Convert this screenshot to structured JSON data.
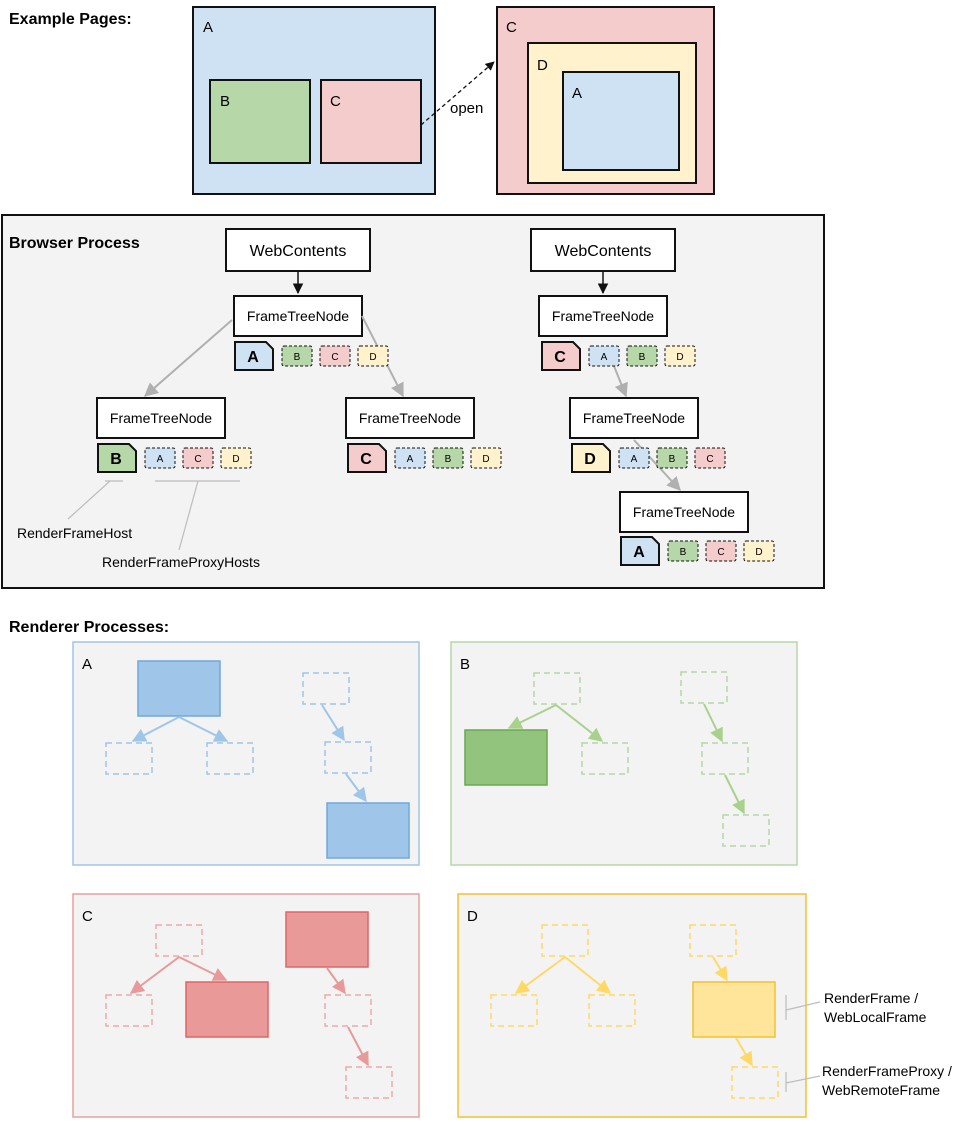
{
  "colors": {
    "blue": "#cfe2f3",
    "green": "#b6d7a8",
    "red": "#f4cccc",
    "yellow": "#fff2cc",
    "panel": "#f3f3f3",
    "blue_strong": "#9fc5e8",
    "green_strong": "#93c47d",
    "red_strong": "#ea9999",
    "yellow_strong": "#ffe599",
    "blue_line": "#9fc5e8",
    "green_line": "#a9d18e",
    "red_line": "#e06666",
    "yellow_line": "#f1c232"
  },
  "example_pages": {
    "heading": "Example Pages:",
    "page1": {
      "outer": "A",
      "child_b": "B",
      "child_c": "C"
    },
    "open_label": "open",
    "page2": {
      "outer": "C",
      "middle": "D",
      "inner": "A"
    }
  },
  "browser_process": {
    "heading": "Browser Process",
    "tree1": {
      "web_contents": "WebContents",
      "root": {
        "label": "FrameTreeNode",
        "host": "A",
        "proxies": [
          "B",
          "C",
          "D"
        ]
      },
      "left": {
        "label": "FrameTreeNode",
        "host": "B",
        "proxies": [
          "A",
          "C",
          "D"
        ]
      },
      "right": {
        "label": "FrameTreeNode",
        "host": "C",
        "proxies": [
          "A",
          "B",
          "D"
        ]
      }
    },
    "tree2": {
      "web_contents": "WebContents",
      "root": {
        "label": "FrameTreeNode",
        "host": "C",
        "proxies": [
          "A",
          "B",
          "D"
        ]
      },
      "mid": {
        "label": "FrameTreeNode",
        "host": "D",
        "proxies": [
          "A",
          "B",
          "C"
        ]
      },
      "leaf": {
        "label": "FrameTreeNode",
        "host": "A",
        "proxies": [
          "B",
          "C",
          "D"
        ]
      }
    },
    "callouts": {
      "render_frame_host": "RenderFrameHost",
      "render_frame_proxy_hosts": "RenderFrameProxyHosts"
    }
  },
  "renderer_processes": {
    "heading": "Renderer Processes:",
    "panels": {
      "a": "A",
      "b": "B",
      "c": "C",
      "d": "D"
    },
    "legend": {
      "render_frame": [
        "RenderFrame /",
        "WebLocalFrame"
      ],
      "render_frame_proxy": [
        "RenderFrameProxy /",
        "WebRemoteFrame"
      ]
    }
  }
}
